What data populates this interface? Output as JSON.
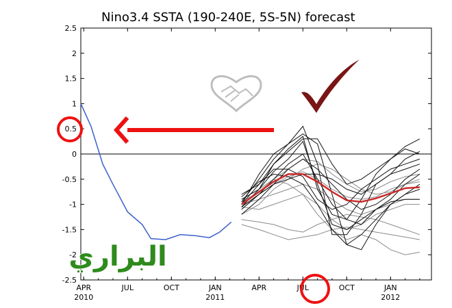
{
  "chart_data": {
    "type": "line",
    "title": "Nino3.4 SSTA (190-240E, 5S-5N) forecast",
    "ylim": [
      -2.5,
      2.5
    ],
    "yticks": [
      "2.5",
      "2",
      "1.5",
      "1",
      "0.5",
      "0",
      "-0.5",
      "-1",
      "-1.5",
      "-2",
      "-2.5"
    ],
    "x_ticks": [
      {
        "label": "APR",
        "year": "2010",
        "m": 0
      },
      {
        "label": "JUL",
        "year": "",
        "m": 3
      },
      {
        "label": "OCT",
        "year": "",
        "m": 6
      },
      {
        "label": "JAN",
        "year": "2011",
        "m": 9
      },
      {
        "label": "APR",
        "year": "",
        "m": 12
      },
      {
        "label": "JUL",
        "year": "",
        "m": 15
      },
      {
        "label": "OCT",
        "year": "",
        "m": 18
      },
      {
        "label": "JAN",
        "year": "2012",
        "m": 21
      }
    ],
    "xlim_months": [
      -0.2,
      23.8
    ],
    "observed": {
      "color": "#3a5fcd",
      "x": [
        -0.2,
        0.5,
        1.3,
        2.0,
        3.0,
        4.0,
        4.6,
        5.6,
        6.6,
        7.6,
        8.6,
        9.3,
        10.1
      ],
      "y": [
        1.0,
        0.55,
        -0.2,
        -0.6,
        -1.15,
        -1.4,
        -1.68,
        -1.7,
        -1.6,
        -1.62,
        -1.66,
        -1.55,
        -1.35
      ]
    },
    "ensemble_mean": {
      "color": "#cc2b2b",
      "x": [
        10.8,
        12,
        13,
        14,
        15,
        16,
        17,
        18,
        19,
        20,
        21,
        22,
        23
      ],
      "y": [
        -1.0,
        -0.75,
        -0.55,
        -0.4,
        -0.4,
        -0.55,
        -0.75,
        -0.92,
        -0.95,
        -0.88,
        -0.78,
        -0.68,
        -0.66
      ]
    },
    "forecast_members_black": [
      [
        -1.05,
        -0.7,
        -0.2,
        0.1,
        0.35,
        -0.7,
        -1.2,
        -1.3,
        -0.9,
        -0.4,
        -0.1,
        0.15,
        0.3
      ],
      [
        -0.95,
        -0.5,
        -0.1,
        0.2,
        0.55,
        -0.2,
        -1.6,
        -1.6,
        -1.2,
        -0.6,
        -0.4,
        -0.1,
        0.05
      ],
      [
        -0.8,
        -0.6,
        -0.3,
        -0.3,
        -0.45,
        -0.9,
        -1.1,
        -1.0,
        -0.7,
        -0.5,
        -0.3,
        -0.2,
        -0.1
      ],
      [
        -1.1,
        -0.8,
        -0.5,
        -0.2,
        0.0,
        -0.5,
        -1.0,
        -1.3,
        -1.4,
        -1.1,
        -0.9,
        -0.6,
        -0.4
      ],
      [
        -1.0,
        -0.4,
        0.0,
        0.2,
        0.4,
        0.2,
        -0.8,
        -1.8,
        -1.9,
        -1.4,
        -1.0,
        -0.8,
        -0.6
      ],
      [
        -1.2,
        -0.9,
        -0.6,
        -0.5,
        -0.4,
        -0.4,
        -0.5,
        -0.7,
        -0.8,
        -0.6,
        -0.4,
        -0.3,
        -0.2
      ],
      [
        -0.9,
        -0.7,
        -0.35,
        -0.1,
        0.25,
        -0.6,
        -1.4,
        -1.5,
        -1.3,
        -1.1,
        -0.95,
        -0.9,
        -0.9
      ],
      [
        -1.05,
        -0.8,
        -0.6,
        -0.3,
        -0.1,
        -0.3,
        -0.6,
        -0.9,
        -1.1,
        -1.0,
        -0.8,
        -0.5,
        -0.3
      ],
      [
        -0.85,
        -0.55,
        -0.4,
        -0.45,
        -0.6,
        -1.0,
        -1.5,
        -1.8,
        -1.6,
        -1.3,
        -1.0,
        -0.8,
        -0.7
      ],
      [
        -1.0,
        -0.6,
        -0.2,
        0.05,
        0.3,
        0.3,
        -0.2,
        -0.6,
        -0.5,
        -0.3,
        -0.1,
        0.1,
        0.0
      ]
    ],
    "forecast_members_gray": [
      [
        -1.3,
        -1.35,
        -1.4,
        -1.5,
        -1.55,
        -1.4,
        -1.3,
        -1.2,
        -1.25,
        -1.3,
        -1.4,
        -1.5,
        -1.6
      ],
      [
        -0.9,
        -0.7,
        -0.5,
        -0.6,
        -0.8,
        -1.2,
        -1.5,
        -1.7,
        -1.6,
        -1.7,
        -1.9,
        -2.0,
        -1.95
      ],
      [
        -1.0,
        -0.9,
        -0.8,
        -0.7,
        -0.6,
        -0.7,
        -0.9,
        -1.1,
        -1.2,
        -1.1,
        -1.0,
        -0.9,
        -0.9
      ],
      [
        -1.2,
        -1.0,
        -0.7,
        -0.5,
        -0.3,
        -0.2,
        -0.3,
        -0.5,
        -0.7,
        -0.8,
        -0.75,
        -0.6,
        -0.5
      ],
      [
        -1.1,
        -0.8,
        -0.6,
        -0.45,
        -0.35,
        -0.5,
        -0.7,
        -0.85,
        -0.9,
        -0.85,
        -0.7,
        -0.6,
        -0.55
      ],
      [
        -1.4,
        -1.5,
        -1.6,
        -1.7,
        -1.65,
        -1.6,
        -1.5,
        -1.45,
        -1.5,
        -1.55,
        -1.6,
        -1.65,
        -1.7
      ],
      [
        -0.95,
        -0.75,
        -0.5,
        -0.3,
        -0.1,
        -0.15,
        -0.4,
        -0.6,
        -0.75,
        -0.7,
        -0.55,
        -0.45,
        -0.4
      ],
      [
        -1.05,
        -1.1,
        -1.0,
        -0.9,
        -0.8,
        -1.0,
        -1.3,
        -1.5,
        -1.4,
        -1.2,
        -1.1,
        -1.0,
        -1.0
      ]
    ],
    "grid": false,
    "legend": "none"
  },
  "annotations": {
    "circle_color": "#ee1111",
    "arrow_color": "#ee1111",
    "check_color": "#7a1515",
    "watermark_text": "البراري",
    "watermark_color": "#2e8b1c",
    "logo_icon": "handshake-heart-logo"
  }
}
